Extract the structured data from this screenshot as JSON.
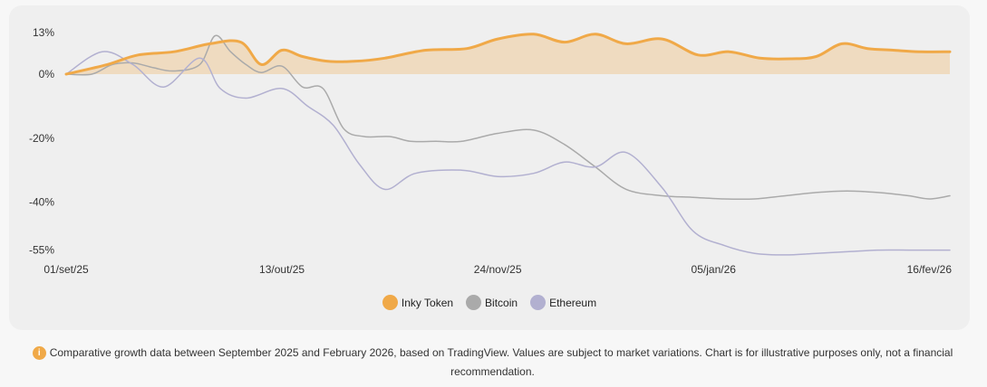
{
  "chart_data": {
    "type": "line",
    "title": "",
    "xlabel": "",
    "ylabel": "",
    "ylim": [
      -55,
      13
    ],
    "y_ticks": [
      13,
      0,
      -20,
      -40,
      -55
    ],
    "y_tick_labels": [
      "13%",
      "0%",
      "-20%",
      "-40%",
      "-55%"
    ],
    "x_domain": [
      0,
      168
    ],
    "x_ticks": [
      {
        "x": 0,
        "label": "01/set/25"
      },
      {
        "x": 42,
        "label": "13/out/25"
      },
      {
        "x": 84,
        "label": "24/nov/25"
      },
      {
        "x": 126,
        "label": "05/jan/26"
      },
      {
        "x": 168,
        "label": "16/fev/26"
      }
    ],
    "x_end": 172,
    "series": [
      {
        "name": "Inky Token",
        "color": "#f0a948",
        "fill": true,
        "x": [
          0,
          8,
          14,
          21,
          28,
          34,
          38,
          42,
          46,
          51,
          56,
          62,
          70,
          78,
          84,
          91,
          97,
          103,
          109,
          116,
          123,
          129,
          135,
          141,
          146,
          151,
          156,
          161,
          166,
          172
        ],
        "values": [
          0,
          3,
          6,
          7,
          9.5,
          10,
          3,
          7.5,
          5.5,
          4,
          4,
          5,
          7.5,
          8,
          11,
          12.5,
          10,
          12.5,
          9.5,
          11,
          6,
          7,
          5,
          4.8,
          5.5,
          9.5,
          8,
          7.5,
          7,
          7
        ]
      },
      {
        "name": "Bitcoin",
        "color": "#aaaaaa",
        "fill": false,
        "x": [
          0,
          5,
          9,
          13,
          17,
          21,
          26,
          29,
          32,
          35,
          38,
          42,
          46,
          50,
          54,
          58,
          63,
          67,
          72,
          77,
          84,
          91,
          97,
          103,
          109,
          116,
          122,
          128,
          134,
          140,
          146,
          152,
          158,
          164,
          168,
          172
        ],
        "values": [
          0,
          0,
          3,
          3.5,
          2,
          1,
          3,
          12,
          7,
          3,
          0.5,
          2.5,
          -4,
          -4.5,
          -17,
          -19.5,
          -19.5,
          -21,
          -21,
          -21,
          -18.5,
          -17.5,
          -22,
          -29,
          -36,
          -38,
          -38.5,
          -39,
          -39,
          -38,
          -37,
          -36.5,
          -37,
          -38,
          -39,
          -38
        ]
      },
      {
        "name": "Ethereum",
        "color": "#b2b0d0",
        "fill": false,
        "x": [
          0,
          7,
          13,
          19,
          26,
          30,
          35,
          42,
          47,
          52,
          57,
          62,
          68,
          77,
          84,
          91,
          97,
          103,
          109,
          116,
          122,
          128,
          134,
          140,
          146,
          152,
          158,
          164,
          168,
          172
        ],
        "values": [
          0,
          7,
          3,
          -4,
          5,
          -4.5,
          -7.5,
          -4.5,
          -10,
          -16,
          -28,
          -36,
          -31,
          -30,
          -32,
          -31,
          -27.5,
          -29,
          -24.5,
          -35.5,
          -49,
          -53.5,
          -56,
          -56.5,
          -56,
          -55.5,
          -55,
          -55,
          -55,
          -55
        ]
      }
    ],
    "legend": [
      "Inky Token",
      "Bitcoin",
      "Ethereum"
    ],
    "legend_position": "bottom-center"
  },
  "footnote": {
    "icon": "info-icon",
    "text": "Comparative growth data between September 2025 and February 2026, based on TradingView. Values are subject to market variations. Chart is for illustrative purposes only, not a financial recommendation."
  }
}
